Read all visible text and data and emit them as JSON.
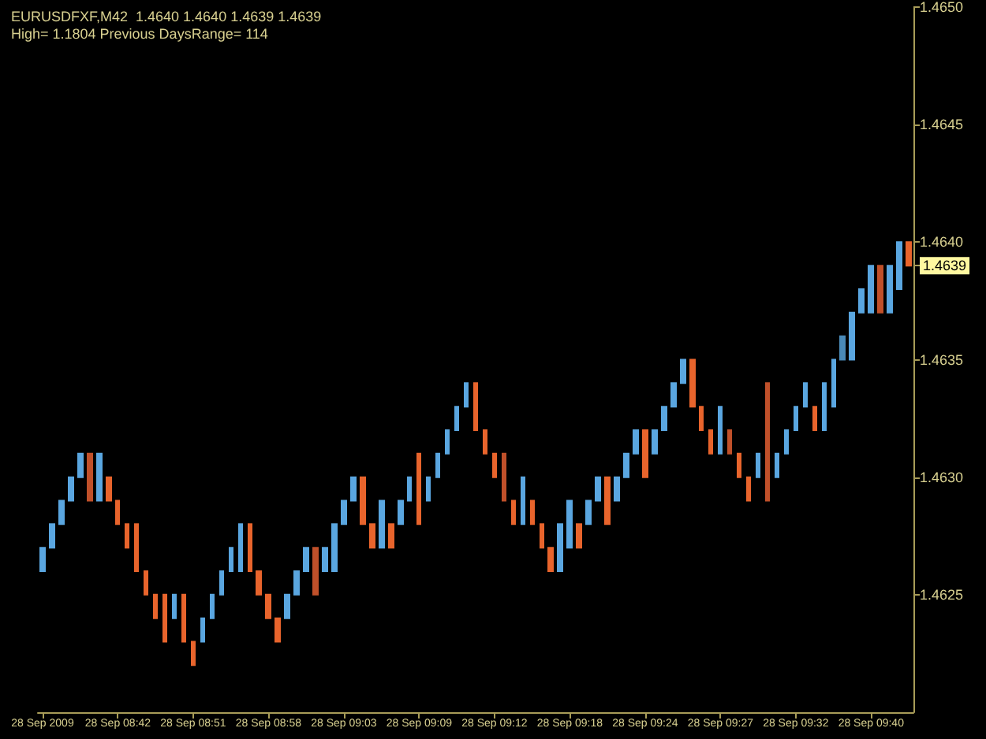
{
  "chart_data": {
    "type": "candlestick",
    "title": "EURUSDFXF,M42  1.4640 1.4640 1.4639 1.4639",
    "subtitle": "High= 1.1804 Previous DaysRange= 114",
    "categories": [
      "28 Sep 2009",
      null,
      null,
      null,
      null,
      null,
      null,
      null,
      "28 Sep 08:42",
      null,
      null,
      null,
      null,
      null,
      null,
      null,
      "28 Sep 08:51",
      null,
      null,
      null,
      null,
      null,
      null,
      null,
      "28 Sep 08:58",
      null,
      null,
      null,
      null,
      null,
      null,
      null,
      "28 Sep 09:03",
      null,
      null,
      null,
      null,
      null,
      null,
      null,
      "28 Sep 09:09",
      null,
      null,
      null,
      null,
      null,
      null,
      null,
      "28 Sep 09:12",
      null,
      null,
      null,
      null,
      null,
      null,
      null,
      "28 Sep 09:18",
      null,
      null,
      null,
      null,
      null,
      null,
      null,
      "28 Sep 09:24",
      null,
      null,
      null,
      null,
      null,
      null,
      null,
      "28 Sep 09:27",
      null,
      null,
      null,
      null,
      null,
      null,
      null,
      "28 Sep 09:32",
      null,
      null,
      null,
      null,
      null,
      null,
      null,
      "28 Sep 09:40",
      null,
      null,
      null,
      null
    ],
    "ohlc": [
      [
        1.4626,
        1.4627,
        1.4626,
        1.4627
      ],
      [
        1.4627,
        1.4628,
        1.4627,
        1.4628
      ],
      [
        1.4628,
        1.4629,
        1.4628,
        1.4629
      ],
      [
        1.4629,
        1.463,
        1.4629,
        1.463
      ],
      [
        1.463,
        1.4631,
        1.463,
        1.4631
      ],
      [
        1.4631,
        1.4631,
        1.4629,
        1.4629
      ],
      [
        1.4629,
        1.4631,
        1.4629,
        1.4631
      ],
      [
        1.463,
        1.463,
        1.4629,
        1.4629
      ],
      [
        1.4629,
        1.4629,
        1.4628,
        1.4628
      ],
      [
        1.4628,
        1.4628,
        1.4627,
        1.4627
      ],
      [
        1.4628,
        1.4628,
        1.4626,
        1.4626
      ],
      [
        1.4626,
        1.4626,
        1.4625,
        1.4625
      ],
      [
        1.4625,
        1.4625,
        1.4624,
        1.4624
      ],
      [
        1.4625,
        1.4625,
        1.4623,
        1.4623
      ],
      [
        1.4624,
        1.4625,
        1.4624,
        1.4625
      ],
      [
        1.4625,
        1.4625,
        1.4623,
        1.4623
      ],
      [
        1.4623,
        1.4623,
        1.4622,
        1.4622
      ],
      [
        1.4623,
        1.4624,
        1.4623,
        1.4624
      ],
      [
        1.4624,
        1.4625,
        1.4624,
        1.4625
      ],
      [
        1.4625,
        1.4626,
        1.4625,
        1.4626
      ],
      [
        1.4626,
        1.4627,
        1.4626,
        1.4627
      ],
      [
        1.4626,
        1.4628,
        1.4626,
        1.4628
      ],
      [
        1.4628,
        1.4628,
        1.4626,
        1.4626
      ],
      [
        1.4626,
        1.4626,
        1.4625,
        1.4625
      ],
      [
        1.4625,
        1.4625,
        1.4624,
        1.4624
      ],
      [
        1.4624,
        1.4624,
        1.4623,
        1.4623
      ],
      [
        1.4624,
        1.4625,
        1.4624,
        1.4625
      ],
      [
        1.4625,
        1.4626,
        1.4625,
        1.4626
      ],
      [
        1.4626,
        1.4627,
        1.4626,
        1.4627
      ],
      [
        1.4627,
        1.4627,
        1.4625,
        1.4625
      ],
      [
        1.4626,
        1.4627,
        1.4626,
        1.4627
      ],
      [
        1.4626,
        1.4628,
        1.4626,
        1.4628
      ],
      [
        1.4628,
        1.4629,
        1.4628,
        1.4629
      ],
      [
        1.4629,
        1.463,
        1.4629,
        1.463
      ],
      [
        1.463,
        1.463,
        1.4628,
        1.4628
      ],
      [
        1.4628,
        1.4628,
        1.4627,
        1.4627
      ],
      [
        1.4627,
        1.4629,
        1.4627,
        1.4629
      ],
      [
        1.4628,
        1.4628,
        1.4627,
        1.4627
      ],
      [
        1.4628,
        1.4629,
        1.4628,
        1.4629
      ],
      [
        1.4629,
        1.463,
        1.4629,
        1.463
      ],
      [
        1.4631,
        1.4631,
        1.4628,
        1.4628
      ],
      [
        1.4629,
        1.463,
        1.4629,
        1.463
      ],
      [
        1.463,
        1.4631,
        1.463,
        1.4631
      ],
      [
        1.4631,
        1.4632,
        1.4631,
        1.4632
      ],
      [
        1.4632,
        1.4633,
        1.4632,
        1.4633
      ],
      [
        1.4633,
        1.4634,
        1.4633,
        1.4634
      ],
      [
        1.4634,
        1.4634,
        1.4632,
        1.4632
      ],
      [
        1.4632,
        1.4632,
        1.4631,
        1.4631
      ],
      [
        1.4631,
        1.4631,
        1.463,
        1.463
      ],
      [
        1.4631,
        1.4631,
        1.4629,
        1.4629
      ],
      [
        1.4629,
        1.4629,
        1.4628,
        1.4628
      ],
      [
        1.4628,
        1.463,
        1.4628,
        1.463
      ],
      [
        1.4629,
        1.4629,
        1.4628,
        1.4628
      ],
      [
        1.4628,
        1.4628,
        1.4627,
        1.4627
      ],
      [
        1.4627,
        1.4627,
        1.4626,
        1.4626
      ],
      [
        1.4626,
        1.4628,
        1.4626,
        1.4628
      ],
      [
        1.4627,
        1.4629,
        1.4627,
        1.4629
      ],
      [
        1.4628,
        1.4628,
        1.4627,
        1.4627
      ],
      [
        1.4628,
        1.4629,
        1.4628,
        1.4629
      ],
      [
        1.4629,
        1.463,
        1.4629,
        1.463
      ],
      [
        1.463,
        1.463,
        1.4628,
        1.4628
      ],
      [
        1.4629,
        1.463,
        1.4629,
        1.463
      ],
      [
        1.463,
        1.4631,
        1.463,
        1.4631
      ],
      [
        1.4631,
        1.4632,
        1.4631,
        1.4632
      ],
      [
        1.4632,
        1.4632,
        1.463,
        1.463
      ],
      [
        1.4631,
        1.4632,
        1.4631,
        1.4632
      ],
      [
        1.4632,
        1.4633,
        1.4632,
        1.4633
      ],
      [
        1.4633,
        1.4634,
        1.4633,
        1.4634
      ],
      [
        1.4634,
        1.4635,
        1.4634,
        1.4635
      ],
      [
        1.4635,
        1.4635,
        1.4633,
        1.4633
      ],
      [
        1.4633,
        1.4633,
        1.4632,
        1.4632
      ],
      [
        1.4632,
        1.4632,
        1.4631,
        1.4631
      ],
      [
        1.4631,
        1.4633,
        1.4631,
        1.4633
      ],
      [
        1.4632,
        1.4632,
        1.4631,
        1.4631
      ],
      [
        1.4631,
        1.4631,
        1.463,
        1.463
      ],
      [
        1.463,
        1.463,
        1.4629,
        1.4629
      ],
      [
        1.463,
        1.4631,
        1.463,
        1.4631
      ],
      [
        1.4634,
        1.4634,
        1.4629,
        1.4629
      ],
      [
        1.463,
        1.4631,
        1.463,
        1.4631
      ],
      [
        1.4631,
        1.4632,
        1.4631,
        1.4632
      ],
      [
        1.4632,
        1.4633,
        1.4632,
        1.4633
      ],
      [
        1.4633,
        1.4634,
        1.4633,
        1.4634
      ],
      [
        1.4633,
        1.4633,
        1.4632,
        1.4632
      ],
      [
        1.4632,
        1.4634,
        1.4632,
        1.4634
      ],
      [
        1.4633,
        1.4635,
        1.4633,
        1.4635
      ],
      [
        1.4635,
        1.4636,
        1.4635,
        1.4636
      ],
      [
        1.4635,
        1.4637,
        1.4635,
        1.4637
      ],
      [
        1.4637,
        1.4638,
        1.4637,
        1.4638
      ],
      [
        1.4637,
        1.4639,
        1.4637,
        1.4639
      ],
      [
        1.4639,
        1.4639,
        1.4637,
        1.4637
      ],
      [
        1.4637,
        1.4639,
        1.4637,
        1.4639
      ],
      [
        1.4638,
        1.464,
        1.4638,
        1.464
      ],
      [
        1.464,
        1.464,
        1.4639,
        1.4639
      ]
    ],
    "colors": [
      "#5aa6e0",
      "#5aa6e0",
      "#5aa6e0",
      "#5aa6e0",
      "#5aa6e0",
      "#c0502a",
      "#5aa6e0",
      "#e8642c",
      "#e8642c",
      "#e8642c",
      "#e8642c",
      "#e8642c",
      "#e8642c",
      "#e8642c",
      "#5aa6e0",
      "#e8642c",
      "#e8642c",
      "#5aa6e0",
      "#5aa6e0",
      "#5aa6e0",
      "#5aa6e0",
      "#5aa6e0",
      "#e8642c",
      "#e8642c",
      "#e8642c",
      "#e8642c",
      "#5aa6e0",
      "#5aa6e0",
      "#5aa6e0",
      "#c0502a",
      "#5aa6e0",
      "#5aa6e0",
      "#5aa6e0",
      "#5aa6e0",
      "#e8642c",
      "#e8642c",
      "#5aa6e0",
      "#e8642c",
      "#5aa6e0",
      "#5aa6e0",
      "#e8642c",
      "#5aa6e0",
      "#5aa6e0",
      "#5aa6e0",
      "#5aa6e0",
      "#5aa6e0",
      "#e8642c",
      "#e8642c",
      "#e8642c",
      "#c0502a",
      "#e8642c",
      "#5aa6e0",
      "#e8642c",
      "#e8642c",
      "#e8642c",
      "#5aa6e0",
      "#5aa6e0",
      "#e8642c",
      "#5aa6e0",
      "#5aa6e0",
      "#e8642c",
      "#5aa6e0",
      "#5aa6e0",
      "#5aa6e0",
      "#e8642c",
      "#5aa6e0",
      "#5aa6e0",
      "#5aa6e0",
      "#5aa6e0",
      "#e8642c",
      "#e8642c",
      "#e8642c",
      "#5aa6e0",
      "#c0502a",
      "#e8642c",
      "#e8642c",
      "#5aa6e0",
      "#c0502a",
      "#5aa6e0",
      "#5aa6e0",
      "#5aa6e0",
      "#5aa6e0",
      "#e8642c",
      "#5aa6e0",
      "#5aa6e0",
      "#4a8ab8",
      "#5aa6e0",
      "#5aa6e0",
      "#5aa6e0",
      "#c0502a",
      "#5aa6e0",
      "#5aa6e0",
      "#e8642c"
    ],
    "ylim": [
      1.462,
      1.465
    ],
    "yticks": [
      {
        "value": 1.4625,
        "label": "1.4625"
      },
      {
        "value": 1.463,
        "label": "1.4630"
      },
      {
        "value": 1.4635,
        "label": "1.4635"
      },
      {
        "value": 1.464,
        "label": "1.4640"
      },
      {
        "value": 1.4645,
        "label": "1.4645"
      },
      {
        "value": 1.465,
        "label": "1.4650"
      },
      {
        "value": 1.4639,
        "label": "1.4639"
      }
    ],
    "grid": false
  }
}
